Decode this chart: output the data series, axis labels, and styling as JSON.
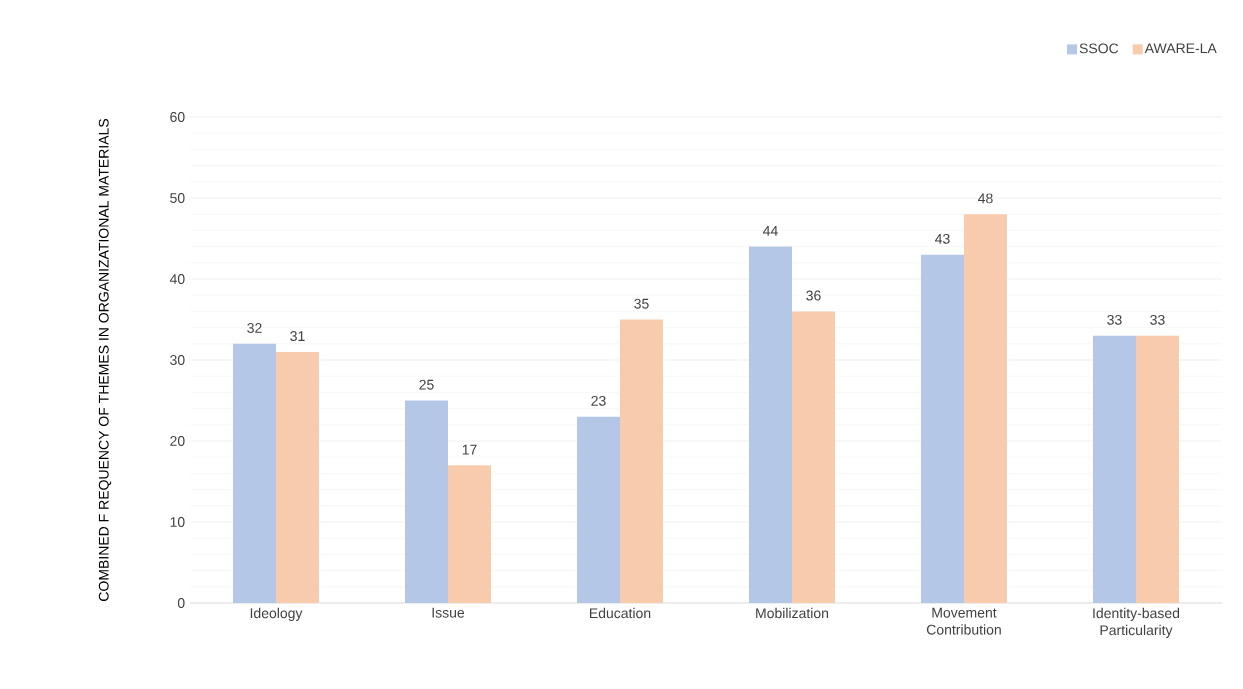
{
  "chart_data": {
    "type": "bar",
    "ylabel": "COMBINED F REQUENCY OF THEMES IN ORGANIZATIONAL MATERIALS",
    "categories": [
      "Ideology",
      "Issue",
      "Education",
      "Mobilization",
      "Movement Contribution",
      "Identity-based Particularity"
    ],
    "series": [
      {
        "name": "SSOC",
        "color": "#b4c7e7",
        "values": [
          32,
          25,
          23,
          44,
          43,
          33
        ]
      },
      {
        "name": "AWARE-LA",
        "color": "#f8cbad",
        "values": [
          31,
          17,
          35,
          36,
          48,
          33
        ]
      }
    ],
    "ylim": [
      0,
      60
    ],
    "yticks": [
      0,
      10,
      20,
      30,
      40,
      50,
      60
    ],
    "grid": "y",
    "legend": "top right",
    "data_labels": true
  }
}
